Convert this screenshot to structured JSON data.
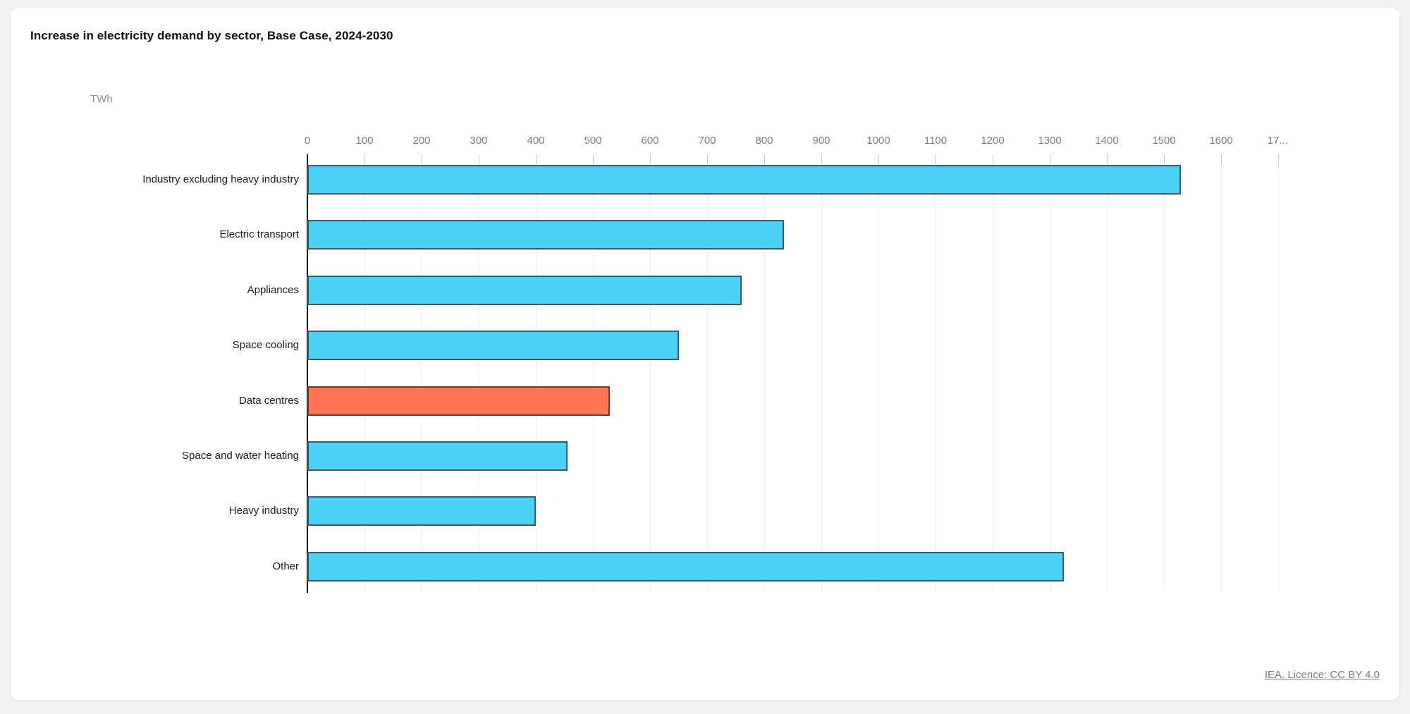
{
  "header": {
    "title": "Increase in electricity demand by sector, Base Case, 2024-2030"
  },
  "footer": {
    "link_text": "IEA. Licence: CC BY 4.0"
  },
  "colors": {
    "page_background": "#f1f1f1",
    "card_background": "#ffffff",
    "gridline": "#ededed",
    "tick": "#c9c9c9",
    "axis_line": "#1a1a1a",
    "tick_label": "#7e7e7e",
    "category_label": "#1a1a1a",
    "bar_blue": "#4CD1F6",
    "bar_blue_border": "#3F5B68",
    "bar_orange": "#FF7355",
    "bar_orange_border": "#713C2E"
  },
  "chart_data": {
    "type": "bar",
    "orientation": "horizontal",
    "title": "Increase in electricity demand by sector, Base Case, 2024-2030",
    "unit": "TWh",
    "categories": [
      "Industry excluding heavy industry",
      "Electric transport",
      "Appliances",
      "Space cooling",
      "Data centres",
      "Space and water heating",
      "Heavy industry",
      "Other"
    ],
    "values": [
      1530,
      835,
      760,
      650,
      530,
      455,
      400,
      1325
    ],
    "highlighted_category": "Data centres",
    "highlighted_index": 4,
    "xlim": [
      0,
      1700
    ],
    "x_tick_step": 100,
    "x_tick_labels": [
      "0",
      "100",
      "200",
      "300",
      "400",
      "500",
      "600",
      "700",
      "800",
      "900",
      "1000",
      "1100",
      "1200",
      "1300",
      "1400",
      "1500",
      "1600",
      "17..."
    ],
    "xlabel": "",
    "ylabel": "TWh",
    "grid": true,
    "legend": false
  }
}
